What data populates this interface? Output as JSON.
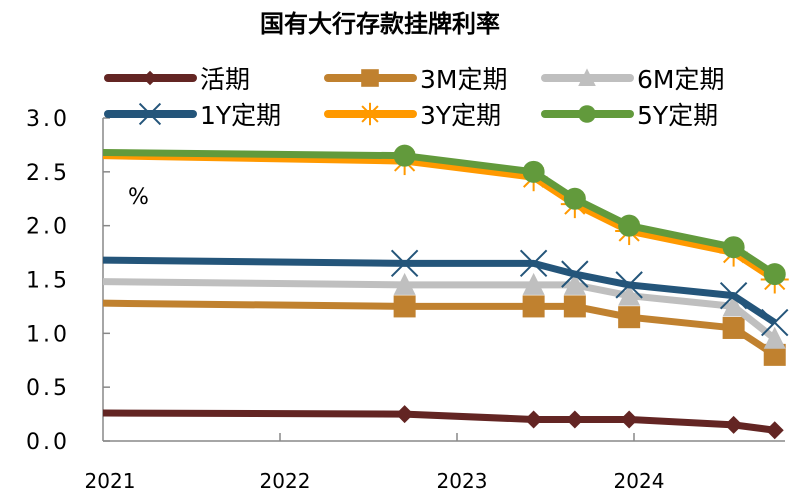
{
  "chart_data": {
    "type": "line",
    "title": "国有大行存款挂牌利率",
    "unit_label": "%",
    "xlabel": "",
    "ylabel": "",
    "x_tick_labels": [
      "2021",
      "2022",
      "2023",
      "2024"
    ],
    "y_tick_labels": [
      "0.0",
      "0.5",
      "1.0",
      "1.5",
      "2.0",
      "2.5",
      "3.0"
    ],
    "ylim": [
      0,
      3.0
    ],
    "xlim": [
      "2021-01-01",
      "2024-11-15"
    ],
    "grid": false,
    "legend_position": "top",
    "x": [
      "2021-01-01",
      "2022-09-15",
      "2023-06-08",
      "2023-09-01",
      "2023-12-22",
      "2024-07-25",
      "2024-10-18"
    ],
    "series": [
      {
        "name": "活期",
        "color": "#632523",
        "marker": "diamond",
        "values": [
          0.26,
          0.25,
          0.2,
          0.2,
          0.2,
          0.15,
          0.1
        ]
      },
      {
        "name": "3M定期",
        "color": "#C0812F",
        "marker": "square",
        "values": [
          1.28,
          1.25,
          1.25,
          1.25,
          1.15,
          1.05,
          0.8
        ]
      },
      {
        "name": "6M定期",
        "color": "#BFBFBF",
        "marker": "triangle",
        "values": [
          1.48,
          1.45,
          1.45,
          1.45,
          1.35,
          1.25,
          0.95
        ]
      },
      {
        "name": "1Y定期",
        "color": "#24557A",
        "marker": "x",
        "values": [
          1.68,
          1.65,
          1.65,
          1.55,
          1.45,
          1.35,
          1.1
        ]
      },
      {
        "name": "3Y定期",
        "color": "#FF9900",
        "marker": "star",
        "values": [
          2.65,
          2.6,
          2.45,
          2.2,
          1.95,
          1.75,
          1.5
        ]
      },
      {
        "name": "5Y定期",
        "color": "#629A3C",
        "marker": "circle",
        "values": [
          2.68,
          2.65,
          2.5,
          2.25,
          2.0,
          1.8,
          1.55
        ]
      }
    ]
  }
}
